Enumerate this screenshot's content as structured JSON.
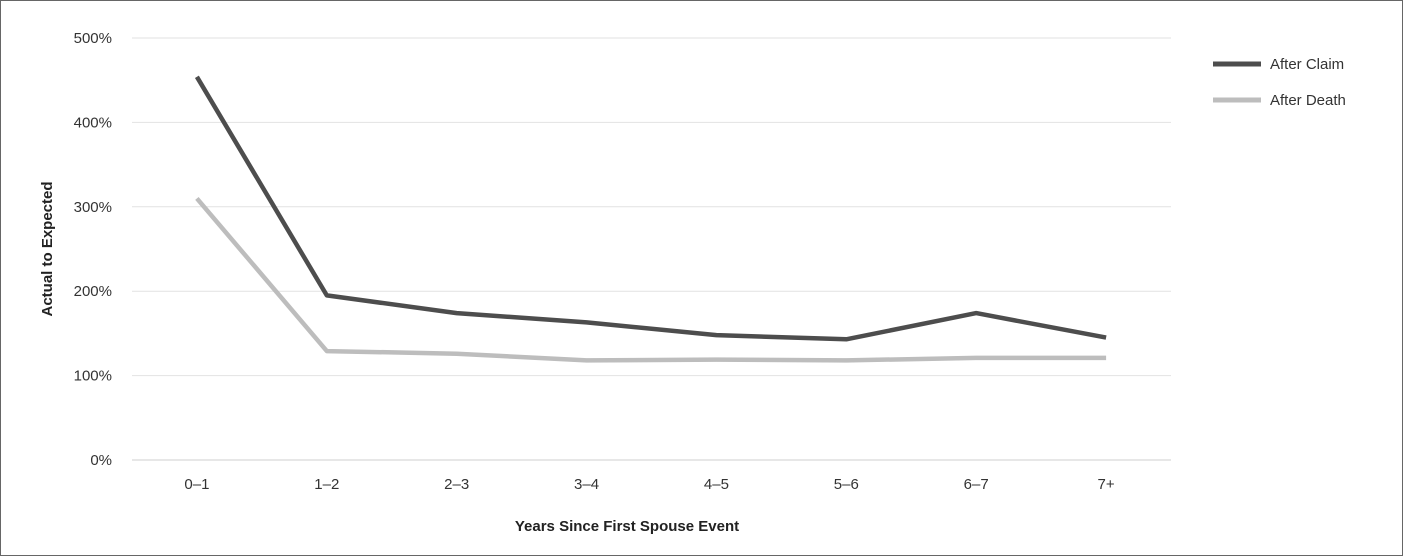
{
  "chart_data": {
    "type": "line",
    "title": "",
    "xlabel": "Years Since First Spouse Event",
    "ylabel": "Actual to Expected",
    "categories": [
      "0–1",
      "1–2",
      "2–3",
      "3–4",
      "4–5",
      "5–6",
      "6–7",
      "7+"
    ],
    "ylim": [
      0,
      500
    ],
    "yticks": [
      0,
      100,
      200,
      300,
      400,
      500
    ],
    "ytick_labels": [
      "0%",
      "100%",
      "200%",
      "300%",
      "400%",
      "500%"
    ],
    "grid": true,
    "legend_position": "top-right",
    "series": [
      {
        "name": "After Claim",
        "color": "#4d4d4d",
        "values": [
          454,
          195,
          174,
          163,
          148,
          143,
          174,
          145
        ]
      },
      {
        "name": "After Death",
        "color": "#bdbdbd",
        "values": [
          310,
          129,
          126,
          118,
          119,
          118,
          121,
          121
        ]
      }
    ]
  }
}
